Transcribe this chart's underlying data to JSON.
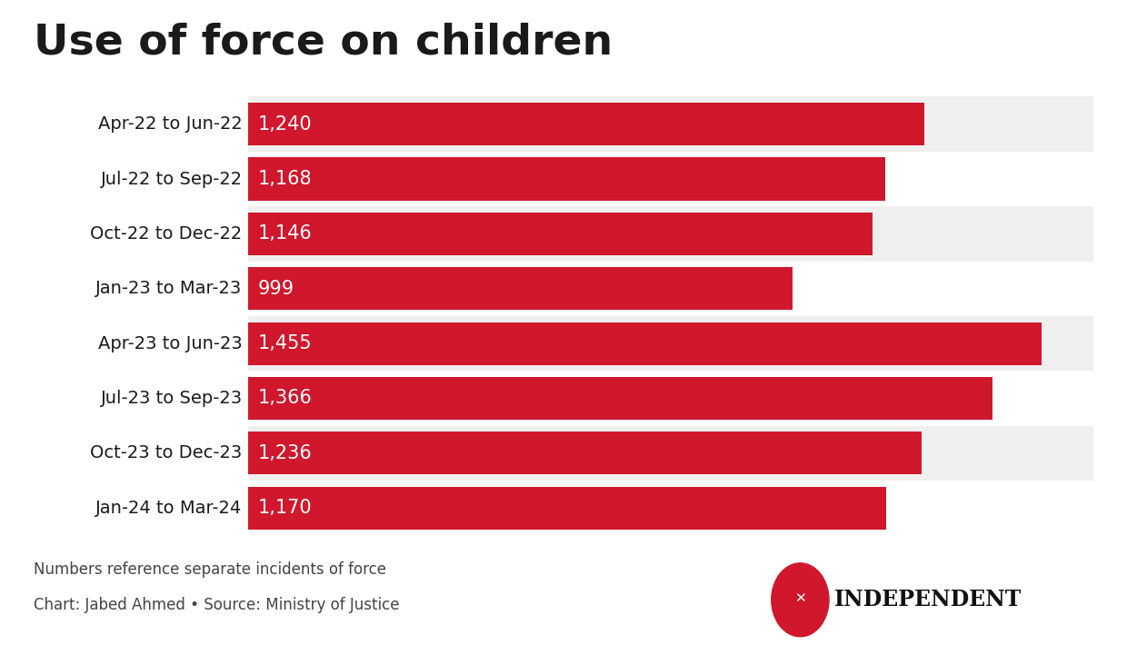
{
  "title": "Use of force on children",
  "categories": [
    "Apr-22 to Jun-22",
    "Jul-22 to Sep-22",
    "Oct-22 to Dec-22",
    "Jan-23 to Mar-23",
    "Apr-23 to Jun-23",
    "Jul-23 to Sep-23",
    "Oct-23 to Dec-23",
    "Jan-24 to Mar-24"
  ],
  "values": [
    1240,
    1168,
    1146,
    999,
    1455,
    1366,
    1236,
    1170
  ],
  "labels": [
    "1,240",
    "1,168",
    "1,146",
    "999",
    "1,455",
    "1,366",
    "1,236",
    "1,170"
  ],
  "bar_color": "#D0172C",
  "bar_bg_color": "#E8E8E8",
  "row_bg_even": "#EFEFEF",
  "row_bg_odd": "#FFFFFF",
  "text_color": "#FFFFFF",
  "title_color": "#1A1A1A",
  "note1": "Numbers reference separate incidents of force",
  "note2": "Chart: Jabed Ahmed • Source: Ministry of Justice",
  "xlim_max": 1550,
  "title_fontsize": 34,
  "label_fontsize": 15,
  "cat_fontsize": 14,
  "note_fontsize": 12,
  "logo_color": "#D0172C"
}
